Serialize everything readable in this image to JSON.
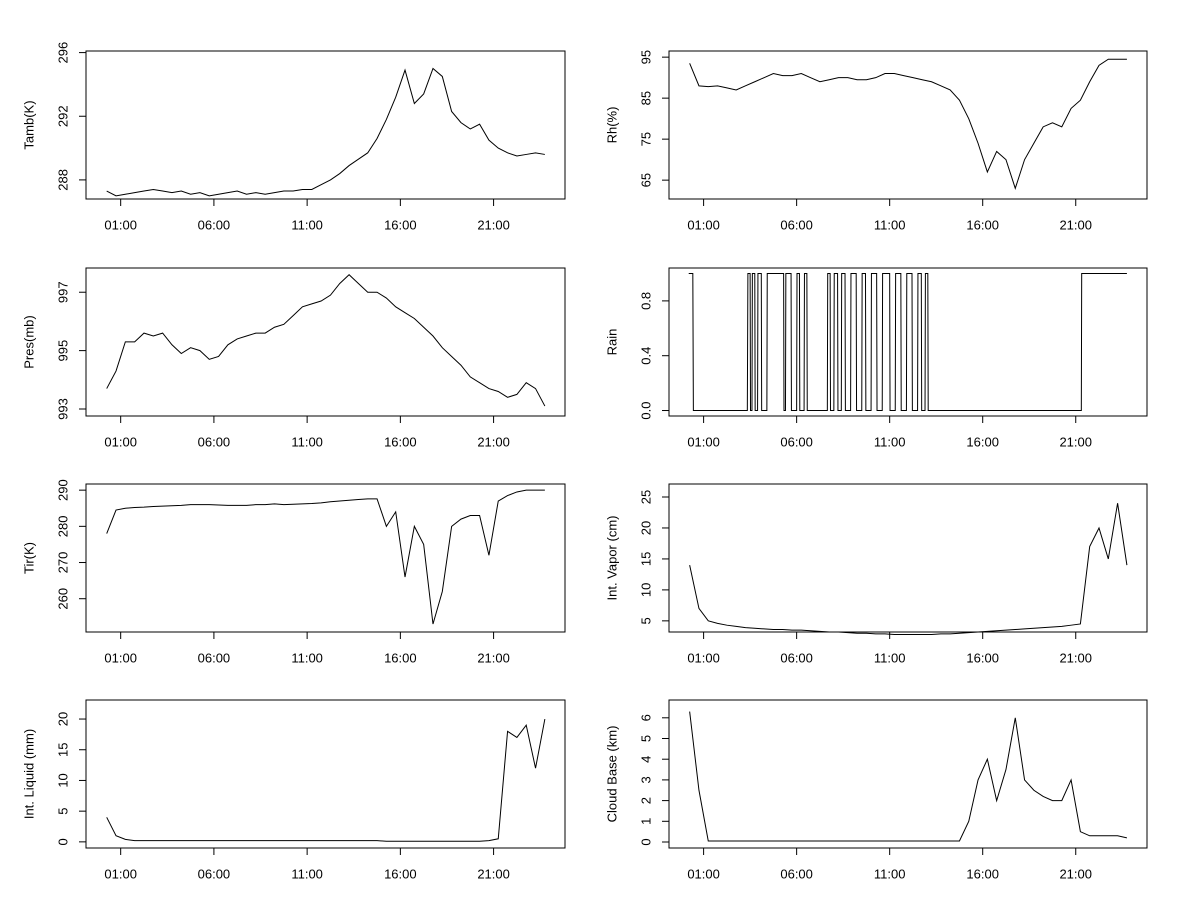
{
  "chart_data": [
    {
      "type": "line",
      "ylabel": "Tamb(K)",
      "color": "#000000",
      "x": [
        0.25,
        0.75,
        1.25,
        1.75,
        2.25,
        2.75,
        3.25,
        3.75,
        4.25,
        4.75,
        5.25,
        5.75,
        6.25,
        6.75,
        7.25,
        7.75,
        8.25,
        8.75,
        9.25,
        9.75,
        10.25,
        10.75,
        11.25,
        11.75,
        12.25,
        12.75,
        13.25,
        13.75,
        14.25,
        14.75,
        15.25,
        15.75,
        16.25,
        16.75,
        17.25,
        17.75,
        18.25,
        18.75,
        19.25,
        19.75,
        20.25,
        20.75,
        21.25,
        21.75,
        22.25,
        22.75,
        23.25,
        23.75
      ],
      "values": [
        287.3,
        287.0,
        287.1,
        287.2,
        287.3,
        287.4,
        287.3,
        287.2,
        287.3,
        287.1,
        287.2,
        287.0,
        287.1,
        287.2,
        287.3,
        287.1,
        287.2,
        287.1,
        287.2,
        287.3,
        287.3,
        287.4,
        287.4,
        287.7,
        288.0,
        288.4,
        288.9,
        289.3,
        289.7,
        290.6,
        291.8,
        293.2,
        294.9,
        292.8,
        293.4,
        295.0,
        294.5,
        292.3,
        291.6,
        291.2,
        291.5,
        290.5,
        290.0,
        289.7,
        289.5,
        289.6,
        289.7,
        289.6
      ],
      "xlim": [
        -0.86,
        24.83
      ],
      "xticks": [
        {
          "value": 1,
          "label": "01:00"
        },
        {
          "value": 6,
          "label": "06:00"
        },
        {
          "value": 11,
          "label": "11:00"
        },
        {
          "value": 16,
          "label": "16:00"
        },
        {
          "value": 21,
          "label": "21:00"
        }
      ],
      "ylim": [
        286.8,
        296.1
      ],
      "yticks": [
        288,
        292,
        296
      ]
    },
    {
      "type": "line",
      "ylabel": "Rh(%)",
      "color": "#000000",
      "x": [
        0.25,
        0.75,
        1.25,
        1.75,
        2.25,
        2.75,
        3.25,
        3.75,
        4.25,
        4.75,
        5.25,
        5.75,
        6.25,
        6.75,
        7.25,
        7.75,
        8.25,
        8.75,
        9.25,
        9.75,
        10.25,
        10.75,
        11.25,
        11.75,
        12.25,
        12.75,
        13.25,
        13.75,
        14.25,
        14.75,
        15.25,
        15.75,
        16.25,
        16.75,
        17.25,
        17.75,
        18.25,
        18.75,
        19.25,
        19.75,
        20.25,
        20.75,
        21.25,
        21.75,
        22.25,
        22.75,
        23.25,
        23.75
      ],
      "values": [
        93.5,
        88,
        87.8,
        88,
        87.5,
        87,
        88,
        89,
        90,
        91,
        90.5,
        90.5,
        91,
        90,
        89,
        89.5,
        90,
        90,
        89.5,
        89.5,
        90,
        91,
        91,
        90.5,
        90,
        89.5,
        89,
        88,
        87,
        84.5,
        80,
        74,
        67,
        72,
        70,
        63,
        70,
        74,
        78,
        79,
        78,
        82.5,
        84.5,
        89,
        93,
        94.5,
        94.5,
        94.5
      ],
      "xlim": [
        -0.86,
        24.83
      ],
      "xticks": [
        {
          "value": 1,
          "label": "01:00"
        },
        {
          "value": 6,
          "label": "06:00"
        },
        {
          "value": 11,
          "label": "11:00"
        },
        {
          "value": 16,
          "label": "16:00"
        },
        {
          "value": 21,
          "label": "21:00"
        }
      ],
      "ylim": [
        60.4,
        96.5
      ],
      "yticks": [
        65,
        75,
        85,
        95
      ]
    },
    {
      "type": "line",
      "ylabel": "Pres(mb)",
      "color": "#000000",
      "x": [
        0.25,
        0.75,
        1.25,
        1.75,
        2.25,
        2.75,
        3.25,
        3.75,
        4.25,
        4.75,
        5.25,
        5.75,
        6.25,
        6.75,
        7.25,
        7.75,
        8.25,
        8.75,
        9.25,
        9.75,
        10.25,
        10.75,
        11.25,
        11.75,
        12.25,
        12.75,
        13.25,
        13.75,
        14.25,
        14.75,
        15.25,
        15.75,
        16.25,
        16.75,
        17.25,
        17.75,
        18.25,
        18.75,
        19.25,
        19.75,
        20.25,
        20.75,
        21.25,
        21.75,
        22.25,
        22.75,
        23.25,
        23.75
      ],
      "values": [
        993.7,
        994.3,
        995.3,
        995.3,
        995.6,
        995.5,
        995.6,
        995.2,
        994.9,
        995.1,
        995.0,
        994.7,
        994.8,
        995.2,
        995.4,
        995.5,
        995.6,
        995.6,
        995.8,
        995.9,
        996.2,
        996.5,
        996.6,
        996.7,
        996.9,
        997.3,
        997.6,
        997.3,
        997.0,
        997.0,
        996.8,
        996.5,
        996.3,
        996.1,
        995.8,
        995.5,
        995.1,
        994.8,
        994.5,
        994.1,
        993.9,
        993.7,
        993.6,
        993.4,
        993.5,
        993.9,
        993.7,
        993.1
      ],
      "xlim": [
        -0.86,
        24.83
      ],
      "xticks": [
        {
          "value": 1,
          "label": "01:00"
        },
        {
          "value": 6,
          "label": "06:00"
        },
        {
          "value": 11,
          "label": "11:00"
        },
        {
          "value": 16,
          "label": "16:00"
        },
        {
          "value": 21,
          "label": "21:00"
        }
      ],
      "ylim": [
        992.76,
        997.83
      ],
      "yticks": [
        993,
        995,
        997
      ]
    },
    {
      "type": "line",
      "ylabel": "Rain",
      "color": "#000000",
      "x": [
        0.2,
        0.42,
        0.45,
        3.35,
        3.38,
        3.5,
        3.52,
        3.6,
        3.62,
        3.75,
        3.77,
        3.9,
        3.92,
        4.1,
        4.12,
        4.4,
        4.42,
        5.3,
        5.32,
        5.4,
        5.42,
        5.7,
        5.72,
        6.0,
        6.02,
        6.15,
        6.17,
        6.4,
        6.42,
        6.55,
        6.57,
        7.65,
        7.67,
        7.8,
        7.82,
        8.0,
        8.02,
        8.2,
        8.22,
        8.4,
        8.42,
        8.6,
        8.62,
        8.9,
        8.92,
        9.2,
        9.22,
        9.5,
        9.52,
        9.7,
        9.72,
        10.0,
        10.02,
        10.3,
        10.32,
        10.6,
        10.62,
        11.0,
        11.02,
        11.3,
        11.32,
        11.6,
        11.62,
        11.9,
        11.92,
        12.2,
        12.22,
        12.5,
        12.52,
        12.7,
        12.72,
        12.9,
        12.92,
        13.05,
        13.07,
        21.3,
        21.32,
        23.75
      ],
      "values": [
        1,
        1,
        0,
        0,
        1,
        1,
        0,
        0,
        1,
        1,
        0,
        0,
        1,
        1,
        0,
        0,
        1,
        1,
        0,
        0,
        1,
        1,
        0,
        0,
        1,
        1,
        0,
        0,
        1,
        1,
        0,
        0,
        1,
        1,
        0,
        0,
        1,
        1,
        0,
        0,
        1,
        1,
        0,
        0,
        1,
        1,
        0,
        0,
        1,
        1,
        0,
        0,
        1,
        1,
        0,
        0,
        1,
        1,
        0,
        0,
        1,
        1,
        0,
        0,
        1,
        1,
        0,
        0,
        1,
        1,
        0,
        0,
        1,
        1,
        0,
        0,
        1,
        1
      ],
      "xlim": [
        -0.86,
        24.83
      ],
      "xticks": [
        {
          "value": 1,
          "label": "01:00"
        },
        {
          "value": 6,
          "label": "06:00"
        },
        {
          "value": 11,
          "label": "11:00"
        },
        {
          "value": 16,
          "label": "16:00"
        },
        {
          "value": 21,
          "label": "21:00"
        }
      ],
      "ylim": [
        -0.04,
        1.04
      ],
      "yticks": [
        {
          "value": 0,
          "label": "0.0"
        },
        0.4,
        0.8
      ]
    },
    {
      "type": "line",
      "ylabel": "Tir(K)",
      "color": "#000000",
      "x": [
        0.25,
        0.75,
        1.25,
        1.75,
        2.25,
        2.75,
        3.25,
        3.75,
        4.25,
        4.75,
        5.25,
        5.75,
        6.25,
        6.75,
        7.25,
        7.75,
        8.25,
        8.75,
        9.25,
        9.75,
        10.25,
        10.75,
        11.25,
        11.75,
        12.25,
        12.75,
        13.25,
        13.75,
        14.25,
        14.75,
        15.25,
        15.75,
        16.25,
        16.75,
        17.25,
        17.75,
        18.25,
        18.75,
        19.25,
        19.75,
        20.25,
        20.75,
        21.25,
        21.75,
        22.25,
        22.75,
        23.25,
        23.75
      ],
      "values": [
        278,
        284.5,
        285,
        285.2,
        285.3,
        285.5,
        285.6,
        285.7,
        285.8,
        286,
        286,
        286,
        285.9,
        285.8,
        285.8,
        285.8,
        286,
        286,
        286.2,
        286,
        286.1,
        286.2,
        286.3,
        286.5,
        286.8,
        287,
        287.2,
        287.4,
        287.6,
        287.6,
        280,
        284,
        266,
        280,
        275,
        253,
        262,
        280,
        282,
        283,
        283,
        272,
        287,
        288.5,
        289.5,
        290,
        290,
        290
      ],
      "xlim": [
        -0.86,
        24.83
      ],
      "xticks": [
        {
          "value": 1,
          "label": "01:00"
        },
        {
          "value": 6,
          "label": "06:00"
        },
        {
          "value": 11,
          "label": "11:00"
        },
        {
          "value": 16,
          "label": "16:00"
        },
        {
          "value": 21,
          "label": "21:00"
        }
      ],
      "ylim": [
        250.8,
        291.7
      ],
      "yticks": [
        260,
        270,
        280,
        290
      ]
    },
    {
      "type": "line",
      "ylabel": "Int. Vapor (cm)",
      "color": "#000000",
      "x": [
        0.25,
        0.75,
        1.25,
        1.75,
        2.25,
        2.75,
        3.25,
        3.75,
        4.25,
        4.75,
        5.25,
        5.75,
        6.25,
        6.75,
        7.25,
        7.75,
        8.25,
        8.75,
        9.25,
        9.75,
        10.25,
        10.75,
        11.25,
        11.75,
        12.25,
        12.75,
        13.25,
        13.75,
        14.25,
        14.75,
        15.25,
        15.75,
        16.25,
        16.75,
        17.25,
        17.75,
        18.25,
        18.75,
        19.25,
        19.75,
        20.25,
        20.75,
        21.25,
        21.75,
        22.25,
        22.75,
        23.25,
        23.75
      ],
      "values": [
        14,
        7,
        5,
        4.6,
        4.3,
        4.1,
        3.9,
        3.8,
        3.7,
        3.6,
        3.6,
        3.5,
        3.5,
        3.4,
        3.3,
        3.2,
        3.2,
        3.1,
        3.0,
        3.0,
        2.9,
        2.9,
        2.8,
        2.8,
        2.8,
        2.8,
        2.8,
        2.9,
        2.9,
        3.0,
        3.1,
        3.2,
        3.3,
        3.4,
        3.5,
        3.6,
        3.7,
        3.8,
        3.9,
        4.0,
        4.1,
        4.3,
        4.5,
        17,
        20,
        15,
        24,
        14
      ],
      "xlim": [
        -0.86,
        24.83
      ],
      "xticks": [
        {
          "value": 1,
          "label": "01:00"
        },
        {
          "value": 6,
          "label": "06:00"
        },
        {
          "value": 11,
          "label": "11:00"
        },
        {
          "value": 16,
          "label": "16:00"
        },
        {
          "value": 21,
          "label": "21:00"
        }
      ],
      "ylim": [
        3.2,
        27.1
      ],
      "yticks": [
        5,
        10,
        15,
        20,
        25
      ]
    },
    {
      "type": "line",
      "ylabel": "Int. Liquid (mm)",
      "color": "#000000",
      "x": [
        0.25,
        0.75,
        1.25,
        1.75,
        2.25,
        2.75,
        3.25,
        3.75,
        4.25,
        4.75,
        5.25,
        5.75,
        6.25,
        6.75,
        7.25,
        7.75,
        8.25,
        8.75,
        9.25,
        9.75,
        10.25,
        10.75,
        11.25,
        11.75,
        12.25,
        12.75,
        13.25,
        13.75,
        14.25,
        14.75,
        15.25,
        15.75,
        16.25,
        16.75,
        17.25,
        17.75,
        18.25,
        18.75,
        19.25,
        19.75,
        20.25,
        20.75,
        21.25,
        21.75,
        22.25,
        22.75,
        23.25,
        23.75
      ],
      "values": [
        4,
        1,
        0.4,
        0.2,
        0.2,
        0.2,
        0.2,
        0.2,
        0.2,
        0.2,
        0.2,
        0.2,
        0.2,
        0.2,
        0.2,
        0.2,
        0.2,
        0.2,
        0.2,
        0.2,
        0.2,
        0.2,
        0.2,
        0.2,
        0.2,
        0.2,
        0.2,
        0.2,
        0.2,
        0.2,
        0.1,
        0.1,
        0.1,
        0.1,
        0.1,
        0.1,
        0.1,
        0.1,
        0.1,
        0.1,
        0.1,
        0.2,
        0.5,
        18,
        17,
        19,
        12,
        20
      ],
      "xlim": [
        -0.86,
        24.83
      ],
      "xticks": [
        {
          "value": 1,
          "label": "01:00"
        },
        {
          "value": 6,
          "label": "06:00"
        },
        {
          "value": 11,
          "label": "11:00"
        },
        {
          "value": 16,
          "label": "16:00"
        },
        {
          "value": 21,
          "label": "21:00"
        }
      ],
      "ylim": [
        -1.0,
        23.1
      ],
      "yticks": [
        0,
        5,
        10,
        15,
        20
      ]
    },
    {
      "type": "line",
      "ylabel": "Cloud Base (km)",
      "color": "#000000",
      "x": [
        0.25,
        0.75,
        1.25,
        1.75,
        2.25,
        2.75,
        3.25,
        3.75,
        4.25,
        4.75,
        5.25,
        5.75,
        6.25,
        6.75,
        7.25,
        7.75,
        8.25,
        8.75,
        9.25,
        9.75,
        10.25,
        10.75,
        11.25,
        11.75,
        12.25,
        12.75,
        13.25,
        13.75,
        14.25,
        14.75,
        15.25,
        15.75,
        16.25,
        16.75,
        17.25,
        17.75,
        18.25,
        18.75,
        19.25,
        19.75,
        20.25,
        20.75,
        21.25,
        21.75,
        22.25,
        22.75,
        23.25,
        23.75
      ],
      "values": [
        6.3,
        2.5,
        0.05,
        0.05,
        0.05,
        0.05,
        0.05,
        0.05,
        0.05,
        0.05,
        0.05,
        0.05,
        0.05,
        0.05,
        0.05,
        0.05,
        0.05,
        0.05,
        0.05,
        0.05,
        0.05,
        0.05,
        0.05,
        0.05,
        0.05,
        0.05,
        0.05,
        0.05,
        0.05,
        0.05,
        1,
        3,
        4,
        2,
        3.5,
        6,
        3,
        2.5,
        2.2,
        2.0,
        2.0,
        3,
        0.5,
        0.3,
        0.3,
        0.3,
        0.3,
        0.2
      ],
      "xlim": [
        -0.86,
        24.83
      ],
      "xticks": [
        {
          "value": 1,
          "label": "01:00"
        },
        {
          "value": 6,
          "label": "06:00"
        },
        {
          "value": 11,
          "label": "11:00"
        },
        {
          "value": 16,
          "label": "16:00"
        },
        {
          "value": 21,
          "label": "21:00"
        }
      ],
      "ylim": [
        -0.29,
        6.86
      ],
      "yticks": [
        0,
        1,
        2,
        3,
        4,
        5,
        6
      ]
    }
  ]
}
